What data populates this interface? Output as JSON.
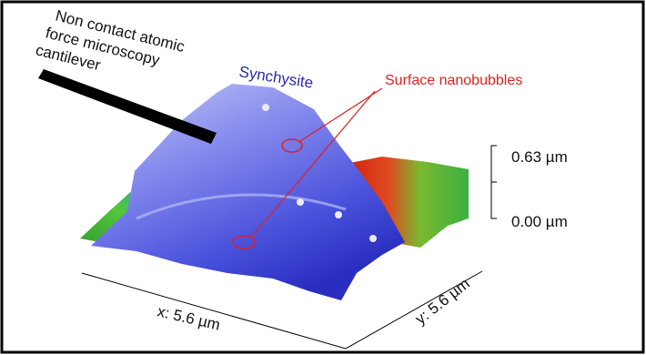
{
  "annotations": {
    "cantilever_label": {
      "lines": [
        "Non contact atomic",
        "force microscopy",
        "cantilever"
      ]
    },
    "mineral_label": "Synchysite",
    "bubbles_label": "Surface nanobubbles",
    "z_top_label": "0.63 µm",
    "z_bottom_label": "0.00 µm",
    "x_axis_label": "x: 5.6 µm",
    "y_axis_label": "y: 5.6 µm"
  }
}
